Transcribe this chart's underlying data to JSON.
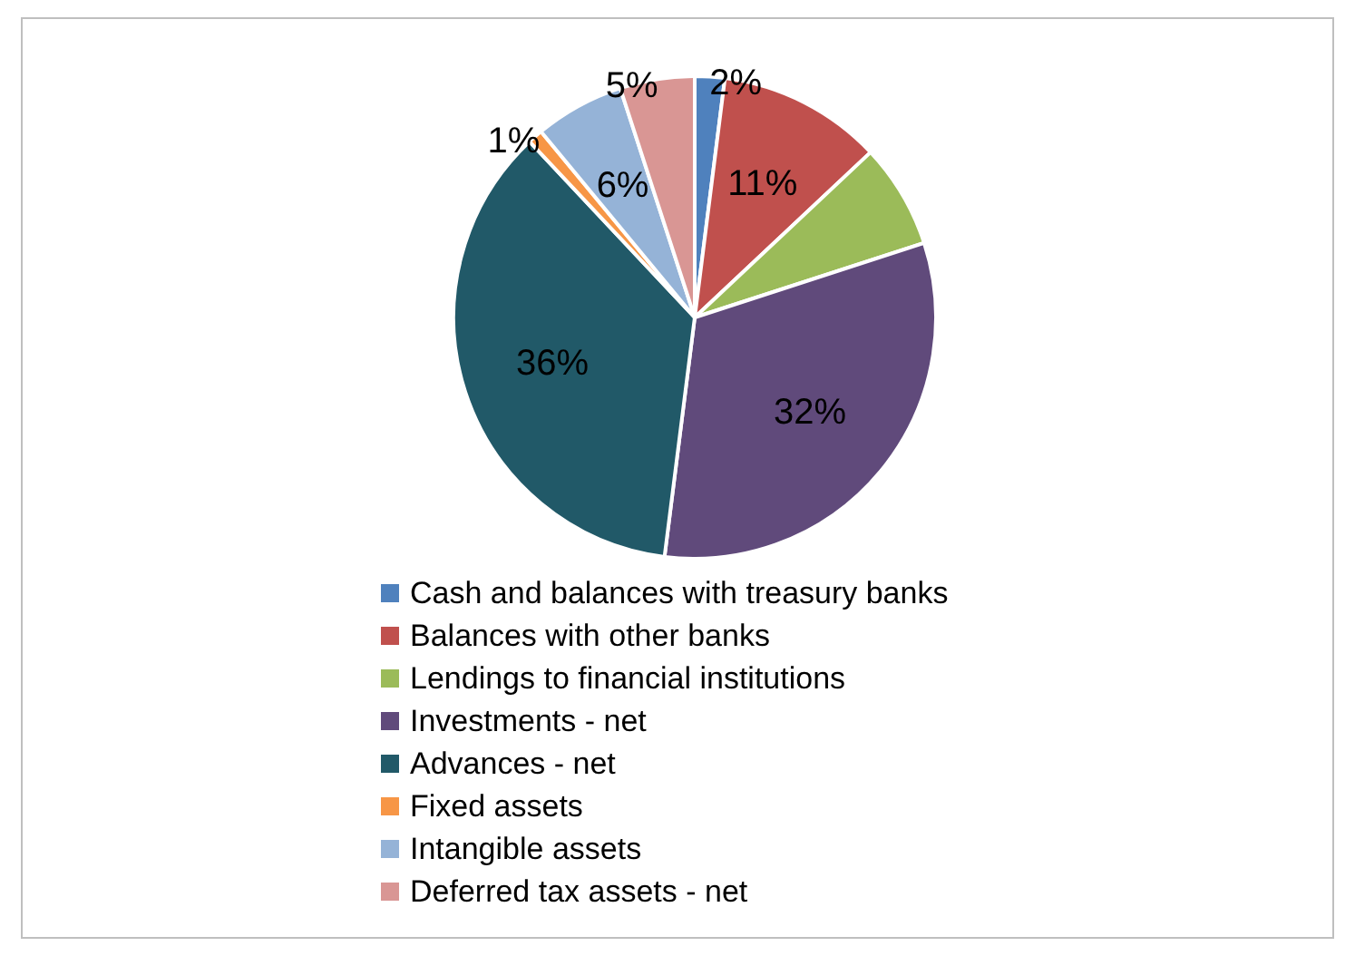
{
  "chart_data": {
    "type": "pie",
    "categories": [
      "Cash and balances with treasury banks",
      "Balances with other banks",
      "Lendings to financial institutions",
      "Investments - net",
      "Advances - net",
      "Fixed assets",
      "Intangible assets",
      "Deferred tax assets - net"
    ],
    "values": [
      2,
      11,
      7,
      32,
      36,
      1,
      6,
      5
    ],
    "colors": [
      "#4f81bd",
      "#c0504d",
      "#9bbb59",
      "#604a7b",
      "#215968",
      "#f79646",
      "#95b3d7",
      "#d99694"
    ],
    "value_labels": [
      "2%",
      "11%",
      null,
      "32%",
      "36%",
      "1%",
      "6%",
      "5%"
    ],
    "legend": "bottom"
  }
}
